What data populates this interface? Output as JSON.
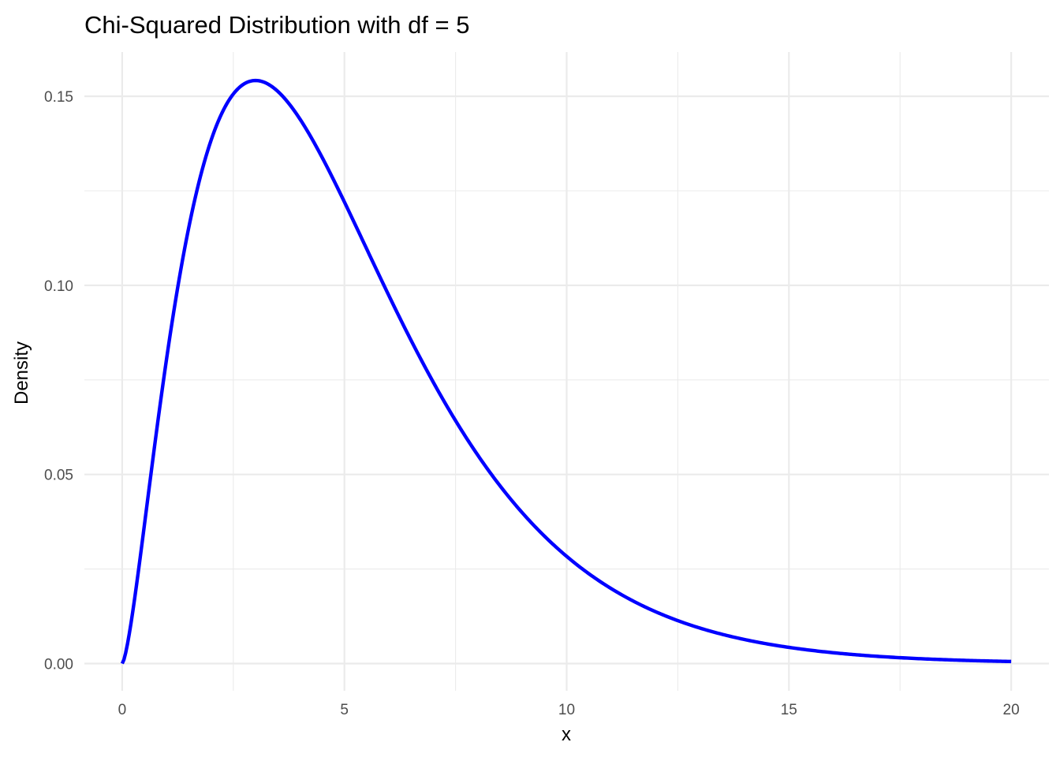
{
  "chart_data": {
    "type": "line",
    "title": "Chi-Squared Distribution with df = 5",
    "xlabel": "x",
    "ylabel": "Density",
    "df": 5,
    "xlim": [
      -0.85,
      20.85
    ],
    "ylim": [
      -0.0072,
      0.1617
    ],
    "x_ticks": [
      0,
      5,
      10,
      15,
      20
    ],
    "x_tick_labels": [
      "0",
      "5",
      "10",
      "15",
      "20"
    ],
    "y_ticks": [
      0.0,
      0.05,
      0.1,
      0.15
    ],
    "y_tick_labels": [
      "0.00",
      "0.05",
      "0.10",
      "0.15"
    ],
    "x_minor_ticks": [
      2.5,
      7.5,
      12.5,
      17.5
    ],
    "y_minor_ticks": [
      0.025,
      0.075,
      0.125
    ],
    "grid": true,
    "series": [
      {
        "color": "#0000ff",
        "x": [
          0,
          0.1,
          0.25,
          0.5,
          0.75,
          1,
          1.25,
          1.5,
          2,
          2.5,
          3,
          3.5,
          4,
          4.5,
          5,
          6,
          7,
          8,
          9,
          10,
          11,
          12,
          13,
          14,
          15,
          16,
          17,
          18,
          19,
          20
        ],
        "y": [
          0,
          0.0038,
          0.0148,
          0.0366,
          0.061,
          0.0807,
          0.0993,
          0.1149,
          0.1384,
          0.1515,
          0.1542,
          0.1525,
          0.1465,
          0.1375,
          0.122,
          0.0973,
          0.0744,
          0.0551,
          0.0399,
          0.0283,
          0.0198,
          0.0137,
          0.0094,
          0.0064,
          0.0043,
          0.0029,
          0.0019,
          0.0013,
          0.0008,
          0.0005
        ]
      }
    ]
  }
}
